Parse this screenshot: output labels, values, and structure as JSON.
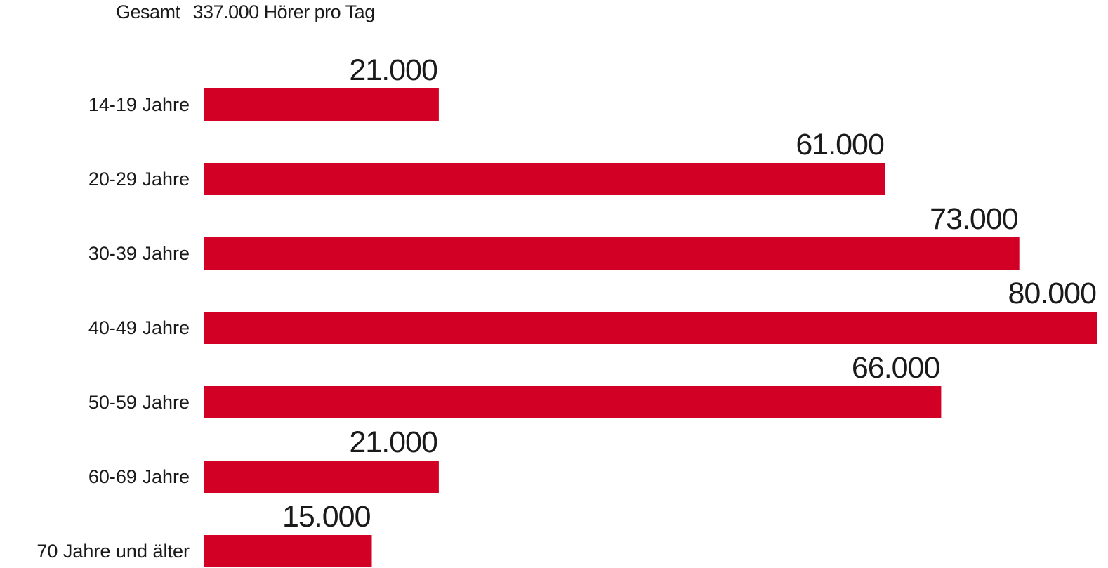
{
  "header": {
    "total_label": "Gesamt",
    "total_value": "337.000 Hörer pro Tag"
  },
  "colors": {
    "bar": "#d10024",
    "text": "#1a1a1a"
  },
  "chart_data": {
    "type": "bar",
    "orientation": "horizontal",
    "categories": [
      "14-19 Jahre",
      "20-29 Jahre",
      "30-39 Jahre",
      "40-49 Jahre",
      "50-59 Jahre",
      "60-69 Jahre",
      "70 Jahre und älter"
    ],
    "values": [
      21000,
      61000,
      73000,
      80000,
      66000,
      21000,
      15000
    ],
    "value_labels": [
      "21.000",
      "61.000",
      "73.000",
      "80.000",
      "66.000",
      "21.000",
      "15.000"
    ],
    "xlim": [
      0,
      80000
    ],
    "grid": false,
    "legend": "none"
  }
}
